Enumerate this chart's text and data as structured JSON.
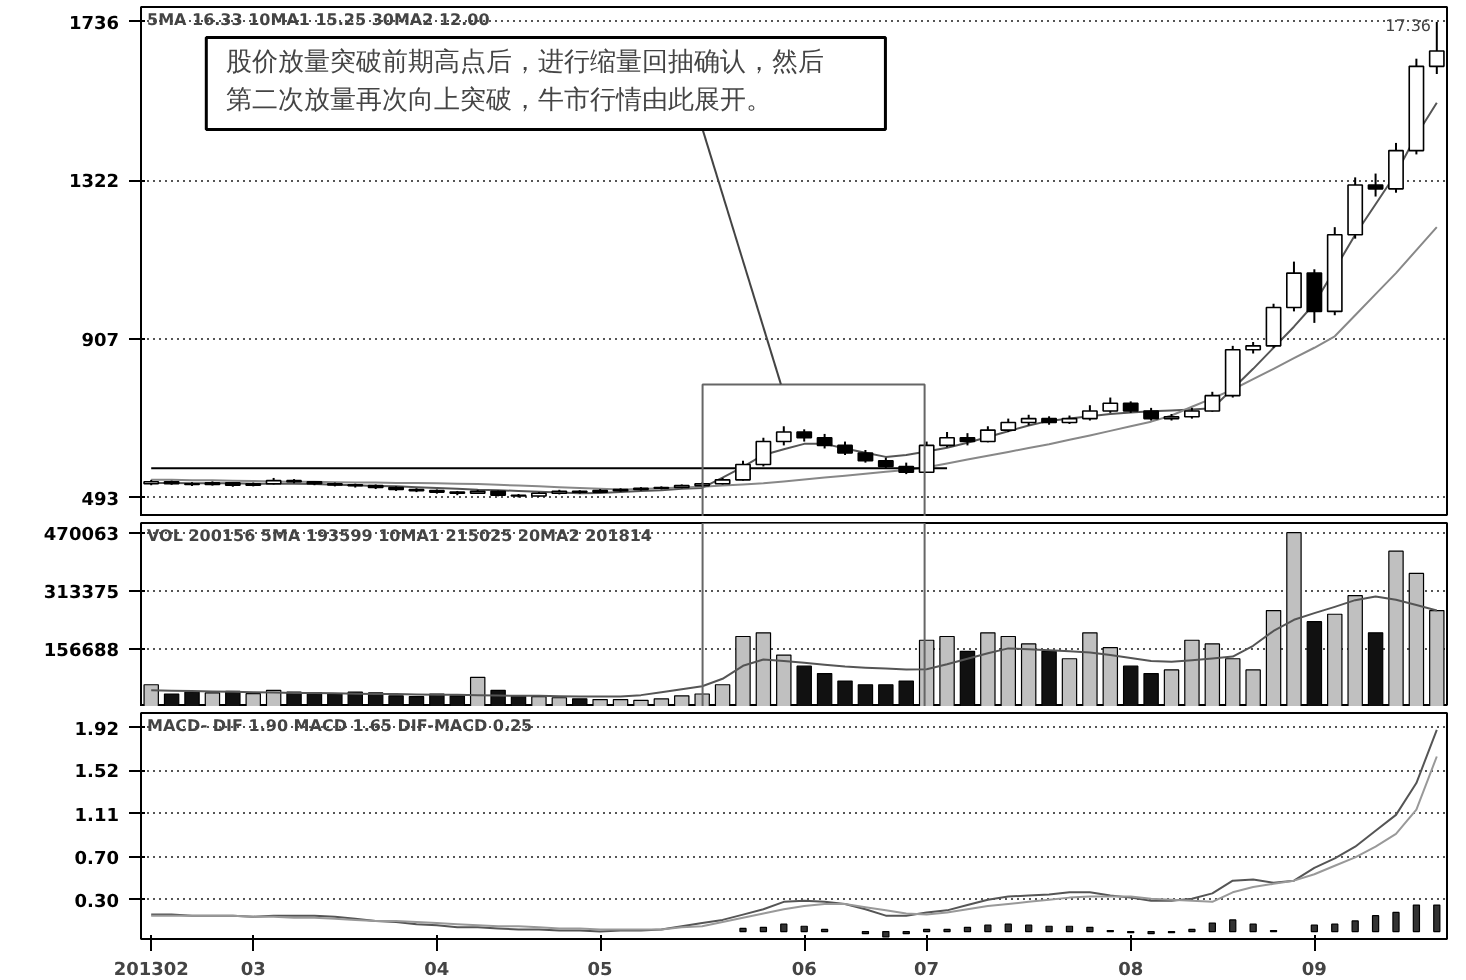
{
  "chart_data": [
    {
      "type": "candlestick",
      "categories": [
        "201302",
        null,
        null,
        null,
        null,
        "03",
        null,
        null,
        null,
        null,
        null,
        null,
        null,
        null,
        "04",
        null,
        null,
        null,
        null,
        null,
        null,
        null,
        "05",
        null,
        null,
        null,
        null,
        null,
        null,
        null,
        null,
        null,
        "06",
        null,
        null,
        null,
        null,
        null,
        "07",
        null,
        null,
        null,
        null,
        null,
        null,
        null,
        null,
        null,
        "08",
        null,
        null,
        null,
        null,
        null,
        null,
        null,
        null,
        "09",
        null,
        null,
        null,
        null,
        null,
        null
      ],
      "ohlc": [
        [
          530,
          540,
          526,
          535
        ],
        [
          535,
          538,
          527,
          530
        ],
        [
          530,
          534,
          524,
          528
        ],
        [
          528,
          536,
          525,
          532
        ],
        [
          532,
          534,
          522,
          526
        ],
        [
          526,
          533,
          523,
          530
        ],
        [
          530,
          545,
          528,
          538
        ],
        [
          538,
          542,
          531,
          535
        ],
        [
          535,
          537,
          526,
          530
        ],
        [
          530,
          533,
          523,
          527
        ],
        [
          527,
          530,
          520,
          525
        ],
        [
          525,
          528,
          516,
          520
        ],
        [
          520,
          523,
          511,
          515
        ],
        [
          515,
          518,
          508,
          512
        ],
        [
          512,
          515,
          504,
          508
        ],
        [
          508,
          511,
          500,
          505
        ],
        [
          505,
          514,
          503,
          510
        ],
        [
          510,
          512,
          497,
          500
        ],
        [
          500,
          503,
          494,
          498
        ],
        [
          498,
          508,
          496,
          505
        ],
        [
          505,
          514,
          502,
          510
        ],
        [
          510,
          513,
          504,
          508
        ],
        [
          508,
          516,
          506,
          512
        ],
        [
          512,
          518,
          509,
          515
        ],
        [
          515,
          521,
          512,
          518
        ],
        [
          518,
          523,
          515,
          520
        ],
        [
          520,
          528,
          518,
          525
        ],
        [
          525,
          533,
          522,
          530
        ],
        [
          530,
          545,
          528,
          540
        ],
        [
          540,
          590,
          538,
          580
        ],
        [
          580,
          650,
          575,
          640
        ],
        [
          640,
          680,
          630,
          665
        ],
        [
          665,
          672,
          640,
          650
        ],
        [
          650,
          660,
          622,
          630
        ],
        [
          630,
          640,
          605,
          610
        ],
        [
          610,
          618,
          585,
          590
        ],
        [
          590,
          598,
          570,
          575
        ],
        [
          575,
          585,
          555,
          560
        ],
        [
          560,
          640,
          558,
          630
        ],
        [
          630,
          665,
          625,
          650
        ],
        [
          650,
          662,
          630,
          640
        ],
        [
          640,
          680,
          638,
          670
        ],
        [
          670,
          700,
          665,
          690
        ],
        [
          690,
          710,
          682,
          700
        ],
        [
          700,
          706,
          684,
          690
        ],
        [
          690,
          708,
          686,
          700
        ],
        [
          700,
          735,
          695,
          720
        ],
        [
          720,
          755,
          715,
          740
        ],
        [
          740,
          745,
          715,
          720
        ],
        [
          720,
          728,
          695,
          700
        ],
        [
          700,
          712,
          695,
          705
        ],
        [
          705,
          728,
          700,
          720
        ],
        [
          720,
          770,
          718,
          760
        ],
        [
          760,
          890,
          755,
          880
        ],
        [
          880,
          900,
          870,
          890
        ],
        [
          890,
          1000,
          885,
          990
        ],
        [
          990,
          1110,
          980,
          1080
        ],
        [
          1080,
          1090,
          950,
          980
        ],
        [
          980,
          1200,
          970,
          1180
        ],
        [
          1180,
          1330,
          1170,
          1310
        ],
        [
          1310,
          1340,
          1280,
          1300
        ],
        [
          1300,
          1420,
          1290,
          1400
        ],
        [
          1400,
          1640,
          1390,
          1620
        ],
        [
          1620,
          1736,
          1600,
          1660
        ]
      ],
      "series": [
        {
          "type": "line",
          "color": "#555555",
          "values": [
            532,
            532,
            531,
            531,
            531,
            530,
            530,
            530,
            529,
            527,
            526,
            524,
            523,
            521,
            519,
            517,
            514,
            513,
            511,
            509,
            507,
            505,
            506,
            508,
            511,
            513,
            517,
            519,
            546,
            574,
            605,
            620,
            634,
            634,
            622,
            611,
            600,
            605,
            614,
            624,
            637,
            652,
            667,
            682,
            694,
            700,
            706,
            712,
            716,
            719,
            721,
            724,
            727,
            778,
            830,
            885,
            940,
            1000,
            1090,
            1180,
            1260,
            1340,
            1440,
            1525
          ]
        },
        {
          "type": "line",
          "color": "#888888",
          "values": [
            540,
            540,
            539,
            539,
            538,
            537,
            536,
            535,
            535,
            534,
            533,
            533,
            532,
            532,
            531,
            530,
            529,
            527,
            525,
            523,
            521,
            519,
            517,
            515,
            516,
            518,
            520,
            522,
            525,
            528,
            531,
            536,
            541,
            546,
            551,
            556,
            561,
            566,
            573,
            583,
            593,
            603,
            613,
            623,
            633,
            645,
            656,
            668,
            680,
            692,
            708,
            731,
            753,
            776,
            803,
            830,
            858,
            885,
            915,
            970,
            1025,
            1080,
            1140,
            1200
          ]
        },
        {
          "type": "line",
          "color": "#000000",
          "values": [
            570,
            570,
            570,
            570,
            570,
            570,
            570,
            570,
            570,
            570,
            570,
            570,
            570,
            570,
            570,
            570,
            570,
            570,
            570,
            570,
            570,
            570,
            570,
            570,
            570,
            570,
            570,
            570,
            570,
            570,
            570,
            570,
            570,
            570,
            570,
            570,
            570,
            570,
            570,
            570,
            null,
            null,
            null,
            null,
            null,
            null,
            null,
            null,
            null,
            null,
            null,
            null,
            null,
            null,
            null,
            null,
            null,
            null,
            null,
            null,
            null,
            null,
            null,
            null
          ]
        }
      ],
      "ylim": [
        443,
        1775
      ],
      "yticks": [
        493,
        907,
        1322,
        1736
      ],
      "grid": "y",
      "tick_labels": "y",
      "annotations": [
        "5MA 16.33 10MA1 15.25 30MA2 12.00",
        "17.36",
        "股价放量突破前期高点后，进行缩量回抽确认，然后",
        "第二次放量再次向上突破，牛市行情由此展开。"
      ]
    },
    {
      "type": "bar",
      "categories": [
        "201302",
        null,
        null,
        null,
        null,
        "03",
        null,
        null,
        null,
        null,
        null,
        null,
        null,
        null,
        "04",
        null,
        null,
        null,
        null,
        null,
        null,
        null,
        "05",
        null,
        null,
        null,
        null,
        null,
        null,
        null,
        null,
        null,
        "06",
        null,
        null,
        null,
        null,
        null,
        "07",
        null,
        null,
        null,
        null,
        null,
        null,
        null,
        null,
        null,
        "08",
        null,
        null,
        null,
        null,
        null,
        null,
        null,
        null,
        "09",
        null,
        null,
        null,
        null,
        null,
        null
      ],
      "values": [
        60000,
        35000,
        40000,
        38000,
        42000,
        36000,
        45000,
        40000,
        38000,
        35000,
        40000,
        38000,
        30000,
        28000,
        35000,
        30000,
        80000,
        45000,
        30000,
        28000,
        25000,
        22000,
        20000,
        20000,
        18000,
        22000,
        30000,
        35000,
        60000,
        190000,
        200000,
        140000,
        110000,
        90000,
        70000,
        60000,
        60000,
        70000,
        180000,
        190000,
        150000,
        200000,
        190000,
        170000,
        150000,
        130000,
        200000,
        160000,
        110000,
        90000,
        100000,
        180000,
        170000,
        130000,
        100000,
        260000,
        470000,
        230000,
        250000,
        300000,
        200000,
        420000,
        360000,
        260000
      ],
      "colors": [
        "#c0c0c0",
        "#111111",
        "#111111",
        "#c0c0c0",
        "#111111",
        "#c0c0c0",
        "#c0c0c0",
        "#111111",
        "#111111",
        "#111111",
        "#111111",
        "#111111",
        "#111111",
        "#111111",
        "#111111",
        "#111111",
        "#c0c0c0",
        "#111111",
        "#111111",
        "#c0c0c0",
        "#c0c0c0",
        "#111111",
        "#c0c0c0",
        "#c0c0c0",
        "#c0c0c0",
        "#c0c0c0",
        "#c0c0c0",
        "#c0c0c0",
        "#c0c0c0",
        "#c0c0c0",
        "#c0c0c0",
        "#c0c0c0",
        "#111111",
        "#111111",
        "#111111",
        "#111111",
        "#111111",
        "#111111",
        "#c0c0c0",
        "#c0c0c0",
        "#111111",
        "#c0c0c0",
        "#c0c0c0",
        "#c0c0c0",
        "#111111",
        "#c0c0c0",
        "#c0c0c0",
        "#c0c0c0",
        "#111111",
        "#111111",
        "#c0c0c0",
        "#c0c0c0",
        "#c0c0c0",
        "#c0c0c0",
        "#c0c0c0",
        "#c0c0c0",
        "#c0c0c0",
        "#111111",
        "#c0c0c0",
        "#c0c0c0",
        "#111111",
        "#c0c0c0",
        "#c0c0c0",
        "#c0c0c0"
      ],
      "series": [
        {
          "type": "line",
          "color": "#555555",
          "values": [
            45000,
            44000,
            43000,
            42000,
            41000,
            40000,
            39000,
            38000,
            38000,
            37000,
            36000,
            35000,
            35000,
            34000,
            33000,
            33000,
            32000,
            31000,
            30000,
            30000,
            29000,
            28000,
            28000,
            28000,
            32000,
            40000,
            48000,
            56000,
            76000,
            111000,
            128000,
            124000,
            119000,
            114000,
            109000,
            106000,
            104000,
            101000,
            102000,
            115000,
            130000,
            145000,
            158000,
            156000,
            153000,
            150000,
            147000,
            140000,
            132000,
            124000,
            122000,
            126000,
            131000,
            136000,
            165000,
            205000,
            235000,
            253000,
            270000,
            288000,
            298000,
            289000,
            275000,
            260000
          ]
        }
      ],
      "ylim": [
        0,
        496000
      ],
      "yticks": [
        156688,
        313375,
        470063
      ],
      "grid": "y",
      "tick_labels": "y",
      "annotations": [
        "VOL 200156 5MA 193599 10MA1 215025 20MA2 201814"
      ]
    },
    {
      "type": "line",
      "categories": [
        "201302",
        null,
        null,
        null,
        null,
        "03",
        null,
        null,
        null,
        null,
        null,
        null,
        null,
        null,
        "04",
        null,
        null,
        null,
        null,
        null,
        null,
        null,
        "05",
        null,
        null,
        null,
        null,
        null,
        null,
        null,
        null,
        null,
        "06",
        null,
        null,
        null,
        null,
        null,
        "07",
        null,
        null,
        null,
        null,
        null,
        null,
        null,
        null,
        null,
        "08",
        null,
        null,
        null,
        null,
        null,
        null,
        null,
        null,
        "09",
        null,
        null,
        null,
        null,
        null,
        null
      ],
      "series": [
        {
          "color": "#555555",
          "values": [
            0.16,
            0.16,
            0.15,
            0.15,
            0.15,
            0.14,
            0.15,
            0.15,
            0.15,
            0.14,
            0.12,
            0.1,
            0.09,
            0.07,
            0.06,
            0.04,
            0.04,
            0.03,
            0.02,
            0.02,
            0.01,
            0.01,
            0.0,
            0.01,
            0.01,
            0.02,
            0.05,
            0.08,
            0.11,
            0.16,
            0.21,
            0.28,
            0.29,
            0.28,
            0.26,
            0.21,
            0.15,
            0.15,
            0.18,
            0.2,
            0.25,
            0.3,
            0.33,
            0.34,
            0.35,
            0.37,
            0.37,
            0.34,
            0.32,
            0.29,
            0.29,
            0.31,
            0.36,
            0.48,
            0.49,
            0.46,
            0.48,
            0.6,
            0.69,
            0.8,
            0.95,
            1.1,
            1.4,
            1.9
          ]
        },
        {
          "color": "#999999",
          "values": [
            0.15,
            0.15,
            0.15,
            0.15,
            0.15,
            0.14,
            0.14,
            0.13,
            0.13,
            0.12,
            0.11,
            0.1,
            0.1,
            0.09,
            0.08,
            0.07,
            0.06,
            0.05,
            0.05,
            0.04,
            0.03,
            0.03,
            0.02,
            0.02,
            0.02,
            0.02,
            0.04,
            0.05,
            0.09,
            0.13,
            0.17,
            0.21,
            0.24,
            0.26,
            0.26,
            0.23,
            0.2,
            0.17,
            0.16,
            0.18,
            0.21,
            0.24,
            0.26,
            0.28,
            0.3,
            0.32,
            0.33,
            0.33,
            0.33,
            0.31,
            0.3,
            0.29,
            0.28,
            0.37,
            0.42,
            0.45,
            0.48,
            0.54,
            0.62,
            0.7,
            0.8,
            0.92,
            1.15,
            1.65
          ]
        },
        {
          "type": "bar",
          "color": "#333333",
          "values": [
            null,
            null,
            null,
            null,
            null,
            null,
            null,
            null,
            null,
            null,
            null,
            null,
            null,
            null,
            null,
            null,
            null,
            null,
            null,
            null,
            null,
            null,
            null,
            null,
            null,
            null,
            null,
            null,
            null,
            0.03,
            0.04,
            0.07,
            0.05,
            0.02,
            null,
            -0.02,
            -0.05,
            -0.02,
            0.02,
            0.02,
            0.04,
            0.06,
            0.07,
            0.06,
            0.05,
            0.05,
            0.04,
            0.01,
            -0.01,
            -0.02,
            -0.01,
            0.02,
            0.08,
            0.11,
            0.07,
            0.01,
            null,
            0.06,
            0.07,
            0.1,
            0.15,
            0.18,
            0.25,
            0.25
          ]
        }
      ],
      "ylim": [
        -0.07,
        2.06
      ],
      "yticks": [
        {
          "value": 0.3,
          "label": "0.30"
        },
        {
          "value": 0.7,
          "label": "0.70"
        },
        1.11,
        1.52,
        1.92
      ],
      "grid": "y",
      "annotations": [
        "MACD- DIF 1.90 MACD 1.65 DIF-MACD 0.25"
      ]
    }
  ]
}
